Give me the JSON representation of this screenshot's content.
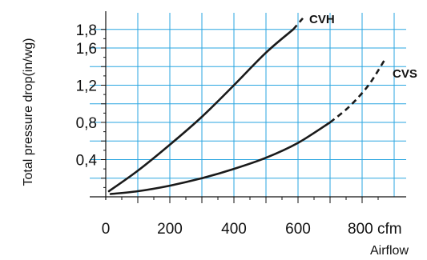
{
  "chart_data": {
    "type": "line",
    "xlabel": "Airflow",
    "ylabel": "Total pressure drop(in/wg)",
    "xlim": [
      0,
      880
    ],
    "ylim": [
      0,
      1.85
    ],
    "x_ticks": [
      {
        "value": 0,
        "label": "0"
      },
      {
        "value": 200,
        "label": "200"
      },
      {
        "value": 400,
        "label": "400"
      },
      {
        "value": 600,
        "label": "600"
      },
      {
        "value": 800,
        "label": "800 cfm"
      }
    ],
    "y_ticks": [
      {
        "value": 0.4,
        "label": "0,4"
      },
      {
        "value": 0.8,
        "label": "0,8"
      },
      {
        "value": 1.2,
        "label": "1,2"
      },
      {
        "value": 1.6,
        "label": "1,6"
      },
      {
        "value": 1.8,
        "label": "1,8"
      }
    ],
    "grid": true,
    "series": [
      {
        "name": "CVH",
        "solid": {
          "x": [
            10,
            100,
            200,
            300,
            400,
            500,
            585
          ],
          "y": [
            0.06,
            0.28,
            0.56,
            0.86,
            1.2,
            1.55,
            1.8
          ]
        },
        "dashed": {
          "x": [
            585,
            615
          ],
          "y": [
            1.8,
            1.92
          ]
        }
      },
      {
        "name": "CVS",
        "solid": {
          "x": [
            15,
            100,
            200,
            300,
            400,
            500,
            600,
            700
          ],
          "y": [
            0.03,
            0.06,
            0.12,
            0.2,
            0.3,
            0.42,
            0.58,
            0.8
          ]
        },
        "dashed": {
          "x": [
            700,
            760,
            820,
            870
          ],
          "y": [
            0.8,
            0.97,
            1.2,
            1.47
          ]
        }
      }
    ]
  }
}
